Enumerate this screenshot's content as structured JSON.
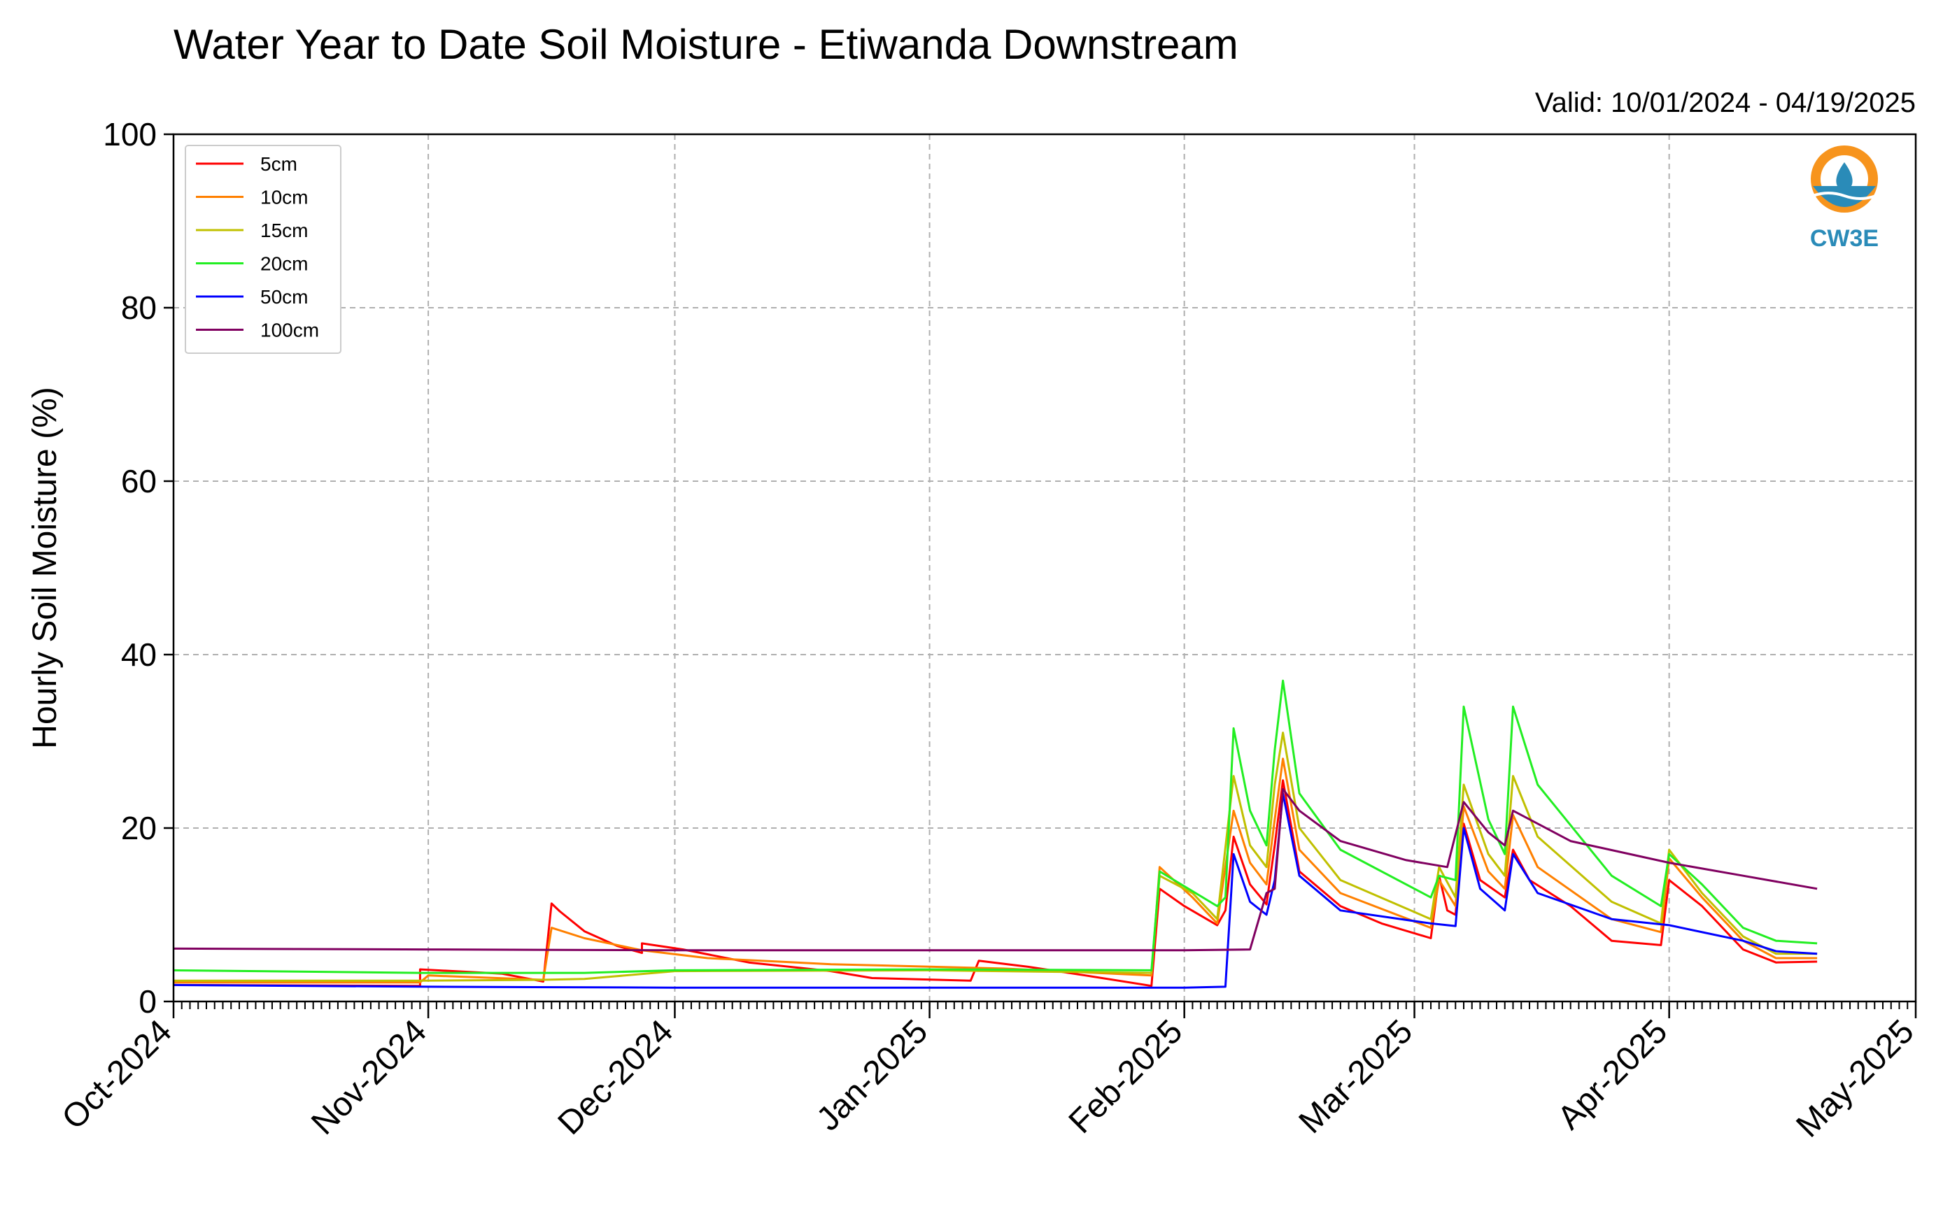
{
  "chart_data": {
    "type": "line",
    "title": "Water Year to Date Soil Moisture - Etiwanda Downstream",
    "subtitle": "Valid: 10/01/2024 - 04/19/2025",
    "ylabel": "Hourly Soil Moisture (%)",
    "xlabel": "",
    "ylim": [
      0,
      100
    ],
    "yticks": [
      0,
      20,
      40,
      60,
      80,
      100
    ],
    "xlim": [
      "2024-10-01",
      "2025-05-01"
    ],
    "xticks": [
      {
        "date": "2024-10-01",
        "label": "Oct-2024"
      },
      {
        "date": "2024-11-01",
        "label": "Nov-2024"
      },
      {
        "date": "2024-12-01",
        "label": "Dec-2024"
      },
      {
        "date": "2025-01-01",
        "label": "Jan-2025"
      },
      {
        "date": "2025-02-01",
        "label": "Feb-2025"
      },
      {
        "date": "2025-03-01",
        "label": "Mar-2025"
      },
      {
        "date": "2025-04-01",
        "label": "Apr-2025"
      },
      {
        "date": "2025-05-01",
        "label": "May-2025"
      }
    ],
    "grid": true,
    "legend_position": "top-left",
    "logo_text": "CW3E",
    "series": [
      {
        "name": "5cm",
        "color": "#ff0000",
        "points": [
          [
            "2024-10-01",
            1.9
          ],
          [
            "2024-10-31",
            1.8
          ],
          [
            "2024-10-31",
            3.7
          ],
          [
            "2024-11-10",
            3.2
          ],
          [
            "2024-11-15",
            2.3
          ],
          [
            "2024-11-16",
            11.3
          ],
          [
            "2024-11-17",
            10.4
          ],
          [
            "2024-11-20",
            8.1
          ],
          [
            "2024-11-24",
            6.4
          ],
          [
            "2024-11-27",
            5.6
          ],
          [
            "2024-11-27",
            6.7
          ],
          [
            "2024-12-02",
            6.0
          ],
          [
            "2024-12-10",
            4.5
          ],
          [
            "2024-12-20",
            3.5
          ],
          [
            "2024-12-25",
            2.7
          ],
          [
            "2025-01-06",
            2.4
          ],
          [
            "2025-01-07",
            4.7
          ],
          [
            "2025-01-13",
            4.0
          ],
          [
            "2025-01-20",
            3.0
          ],
          [
            "2025-01-28",
            1.8
          ],
          [
            "2025-01-29",
            13.0
          ],
          [
            "2025-02-01",
            11.0
          ],
          [
            "2025-02-05",
            8.8
          ],
          [
            "2025-02-06",
            10.5
          ],
          [
            "2025-02-07",
            19.0
          ],
          [
            "2025-02-09",
            13.5
          ],
          [
            "2025-02-11",
            11.2
          ],
          [
            "2025-02-12",
            18.0
          ],
          [
            "2025-02-13",
            25.5
          ],
          [
            "2025-02-15",
            15.0
          ],
          [
            "2025-02-20",
            11.0
          ],
          [
            "2025-02-25",
            9.0
          ],
          [
            "2025-03-03",
            7.3
          ],
          [
            "2025-03-04",
            14.5
          ],
          [
            "2025-03-05",
            10.5
          ],
          [
            "2025-03-06",
            10.0
          ],
          [
            "2025-03-07",
            20.5
          ],
          [
            "2025-03-09",
            14.0
          ],
          [
            "2025-03-12",
            12.0
          ],
          [
            "2025-03-13",
            17.5
          ],
          [
            "2025-03-15",
            14.0
          ],
          [
            "2025-03-20",
            11.0
          ],
          [
            "2025-03-25",
            7.0
          ],
          [
            "2025-03-31",
            6.5
          ],
          [
            "2025-04-01",
            14.0
          ],
          [
            "2025-04-05",
            11.0
          ],
          [
            "2025-04-10",
            6.0
          ],
          [
            "2025-04-14",
            4.5
          ],
          [
            "2025-04-19",
            4.6
          ]
        ]
      },
      {
        "name": "10cm",
        "color": "#ff8000",
        "points": [
          [
            "2024-10-01",
            2.2
          ],
          [
            "2024-10-31",
            2.2
          ],
          [
            "2024-11-01",
            3.0
          ],
          [
            "2024-11-15",
            2.5
          ],
          [
            "2024-11-16",
            8.5
          ],
          [
            "2024-11-20",
            7.3
          ],
          [
            "2024-11-27",
            5.9
          ],
          [
            "2024-12-05",
            5.0
          ],
          [
            "2024-12-20",
            4.3
          ],
          [
            "2025-01-10",
            3.8
          ],
          [
            "2025-01-28",
            3.0
          ],
          [
            "2025-01-29",
            15.5
          ],
          [
            "2025-02-02",
            12.0
          ],
          [
            "2025-02-05",
            9.0
          ],
          [
            "2025-02-07",
            22.0
          ],
          [
            "2025-02-09",
            16.0
          ],
          [
            "2025-02-11",
            13.5
          ],
          [
            "2025-02-12",
            21.0
          ],
          [
            "2025-02-13",
            28.0
          ],
          [
            "2025-02-15",
            17.5
          ],
          [
            "2025-02-20",
            12.5
          ],
          [
            "2025-03-03",
            8.5
          ],
          [
            "2025-03-04",
            14.0
          ],
          [
            "2025-03-06",
            11.0
          ],
          [
            "2025-03-07",
            22.5
          ],
          [
            "2025-03-10",
            15.0
          ],
          [
            "2025-03-12",
            13.0
          ],
          [
            "2025-03-13",
            21.5
          ],
          [
            "2025-03-16",
            15.5
          ],
          [
            "2025-03-25",
            9.5
          ],
          [
            "2025-03-31",
            8.0
          ],
          [
            "2025-04-01",
            16.5
          ],
          [
            "2025-04-05",
            12.0
          ],
          [
            "2025-04-10",
            7.0
          ],
          [
            "2025-04-14",
            5.0
          ],
          [
            "2025-04-19",
            5.0
          ]
        ]
      },
      {
        "name": "15cm",
        "color": "#c0c000",
        "points": [
          [
            "2024-10-01",
            2.4
          ],
          [
            "2024-10-31",
            2.4
          ],
          [
            "2024-11-15",
            2.5
          ],
          [
            "2024-11-20",
            2.6
          ],
          [
            "2024-12-01",
            3.5
          ],
          [
            "2025-01-01",
            3.6
          ],
          [
            "2025-01-28",
            3.3
          ],
          [
            "2025-01-29",
            14.5
          ],
          [
            "2025-02-02",
            12.5
          ],
          [
            "2025-02-05",
            9.5
          ],
          [
            "2025-02-07",
            26.0
          ],
          [
            "2025-02-09",
            18.0
          ],
          [
            "2025-02-11",
            15.5
          ],
          [
            "2025-02-12",
            25.0
          ],
          [
            "2025-02-13",
            31.0
          ],
          [
            "2025-02-15",
            20.0
          ],
          [
            "2025-02-20",
            14.0
          ],
          [
            "2025-03-03",
            9.5
          ],
          [
            "2025-03-04",
            15.5
          ],
          [
            "2025-03-06",
            12.0
          ],
          [
            "2025-03-07",
            25.0
          ],
          [
            "2025-03-10",
            17.0
          ],
          [
            "2025-03-12",
            14.5
          ],
          [
            "2025-03-13",
            26.0
          ],
          [
            "2025-03-16",
            19.0
          ],
          [
            "2025-03-25",
            11.5
          ],
          [
            "2025-03-31",
            9.0
          ],
          [
            "2025-04-01",
            17.5
          ],
          [
            "2025-04-05",
            12.5
          ],
          [
            "2025-04-10",
            7.5
          ],
          [
            "2025-04-14",
            5.5
          ],
          [
            "2025-04-19",
            5.5
          ]
        ]
      },
      {
        "name": "20cm",
        "color": "#22ee22",
        "points": [
          [
            "2024-10-01",
            3.6
          ],
          [
            "2024-10-31",
            3.3
          ],
          [
            "2024-11-20",
            3.3
          ],
          [
            "2024-12-01",
            3.6
          ],
          [
            "2025-01-01",
            3.7
          ],
          [
            "2025-01-28",
            3.6
          ],
          [
            "2025-01-29",
            15.0
          ],
          [
            "2025-02-05",
            11.0
          ],
          [
            "2025-02-06",
            12.0
          ],
          [
            "2025-02-07",
            31.5
          ],
          [
            "2025-02-09",
            22.0
          ],
          [
            "2025-02-11",
            18.0
          ],
          [
            "2025-02-12",
            29.0
          ],
          [
            "2025-02-13",
            37.0
          ],
          [
            "2025-02-15",
            24.0
          ],
          [
            "2025-02-20",
            17.5
          ],
          [
            "2025-03-03",
            12.0
          ],
          [
            "2025-03-04",
            14.5
          ],
          [
            "2025-03-06",
            14.0
          ],
          [
            "2025-03-07",
            34.0
          ],
          [
            "2025-03-10",
            21.0
          ],
          [
            "2025-03-12",
            17.0
          ],
          [
            "2025-03-13",
            34.0
          ],
          [
            "2025-03-16",
            25.0
          ],
          [
            "2025-03-25",
            14.5
          ],
          [
            "2025-03-31",
            11.0
          ],
          [
            "2025-04-01",
            17.0
          ],
          [
            "2025-04-05",
            13.5
          ],
          [
            "2025-04-10",
            8.5
          ],
          [
            "2025-04-14",
            7.0
          ],
          [
            "2025-04-19",
            6.7
          ]
        ]
      },
      {
        "name": "50cm",
        "color": "#0000ff",
        "points": [
          [
            "2024-10-01",
            1.9
          ],
          [
            "2024-11-01",
            1.7
          ],
          [
            "2024-12-01",
            1.6
          ],
          [
            "2025-01-01",
            1.6
          ],
          [
            "2025-02-01",
            1.6
          ],
          [
            "2025-02-06",
            1.7
          ],
          [
            "2025-02-07",
            17.0
          ],
          [
            "2025-02-09",
            11.5
          ],
          [
            "2025-02-11",
            10.0
          ],
          [
            "2025-02-12",
            14.0
          ],
          [
            "2025-02-13",
            24.0
          ],
          [
            "2025-02-15",
            14.5
          ],
          [
            "2025-02-20",
            10.5
          ],
          [
            "2025-03-03",
            9.0
          ],
          [
            "2025-03-06",
            8.7
          ],
          [
            "2025-03-07",
            20.0
          ],
          [
            "2025-03-09",
            13.0
          ],
          [
            "2025-03-12",
            10.5
          ],
          [
            "2025-03-13",
            17.0
          ],
          [
            "2025-03-16",
            12.5
          ],
          [
            "2025-03-25",
            9.5
          ],
          [
            "2025-04-01",
            8.8
          ],
          [
            "2025-04-10",
            7.0
          ],
          [
            "2025-04-14",
            5.8
          ],
          [
            "2025-04-19",
            5.5
          ]
        ]
      },
      {
        "name": "100cm",
        "color": "#800060",
        "points": [
          [
            "2024-10-01",
            6.1
          ],
          [
            "2024-11-01",
            6.0
          ],
          [
            "2024-12-01",
            5.9
          ],
          [
            "2025-01-01",
            5.9
          ],
          [
            "2025-02-01",
            5.9
          ],
          [
            "2025-02-09",
            6.0
          ],
          [
            "2025-02-11",
            12.5
          ],
          [
            "2025-02-12",
            13.0
          ],
          [
            "2025-02-13",
            24.5
          ],
          [
            "2025-02-15",
            22.0
          ],
          [
            "2025-02-20",
            18.5
          ],
          [
            "2025-02-28",
            16.3
          ],
          [
            "2025-03-05",
            15.5
          ],
          [
            "2025-03-07",
            23.0
          ],
          [
            "2025-03-10",
            19.5
          ],
          [
            "2025-03-12",
            18.0
          ],
          [
            "2025-03-13",
            22.0
          ],
          [
            "2025-03-20",
            18.5
          ],
          [
            "2025-04-01",
            16.0
          ],
          [
            "2025-04-10",
            14.5
          ],
          [
            "2025-04-19",
            13.0
          ]
        ]
      }
    ]
  }
}
